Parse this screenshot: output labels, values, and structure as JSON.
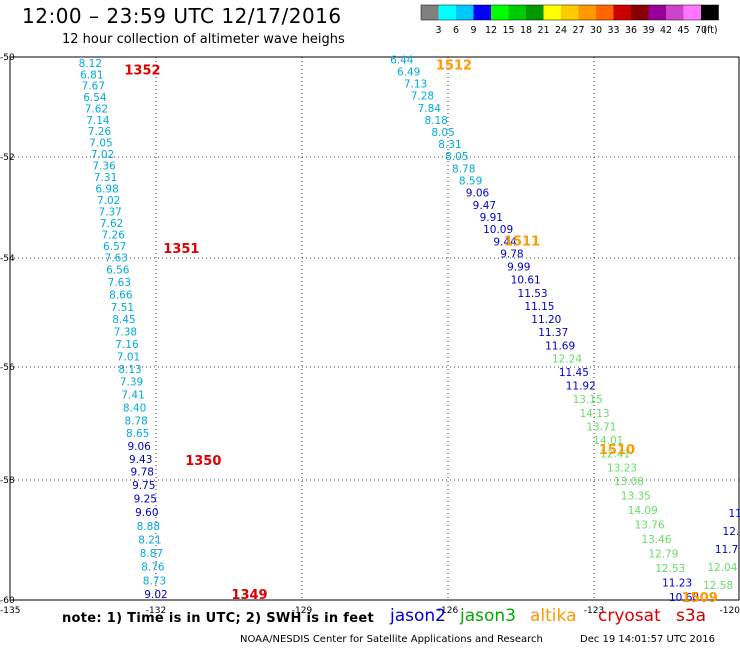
{
  "header": {
    "title": "12:00 – 23:59 UTC 12/17/2016",
    "subtitle": "12 hour collection of altimeter wave heighs"
  },
  "color_scale": {
    "unit": "(ft)",
    "colors": [
      "#808080",
      "#00ffff",
      "#00c8ff",
      "#0000ff",
      "#00ff00",
      "#00cc00",
      "#009900",
      "#ffff00",
      "#ffcc00",
      "#ff9900",
      "#ff6600",
      "#cc0000",
      "#880000",
      "#990099",
      "#cc44cc",
      "#ff77ff",
      "#000000"
    ],
    "labels": [
      "3",
      "6",
      "9",
      "12",
      "15",
      "18",
      "21",
      "24",
      "27",
      "30",
      "33",
      "36",
      "39",
      "42",
      "45",
      "70"
    ]
  },
  "footer": {
    "note": "note: 1) Time is in UTC; 2) SWH is in feet",
    "credit": "NOAA/NESDIS Center for Satellite Applications and Research",
    "timestamp": "Dec 19 14:01:57 UTC 2016"
  },
  "legend": [
    {
      "name": "jason2",
      "color": "#0000cc"
    },
    {
      "name": "jason3",
      "color": "#00aa00"
    },
    {
      "name": "altika",
      "color": "#ff9900"
    },
    {
      "name": "cryosat",
      "color": "#dd0000"
    },
    {
      "name": "s3a",
      "color": "#cc0000"
    }
  ],
  "map": {
    "lon_range": [
      -135,
      -120
    ],
    "lat_range": [
      -60,
      -50
    ],
    "lon_ticks": [
      "-135",
      "-132",
      "-129",
      "-126",
      "-123",
      "-120"
    ],
    "lat_ticks": [
      "-50",
      "-52",
      "-54",
      "-56",
      "-58",
      "-60"
    ],
    "lat_tick_values": [
      -50,
      -52,
      -54,
      -56,
      -58,
      -60
    ],
    "grid": true
  },
  "passes": [
    {
      "label": "1352",
      "color": "#dd0000",
      "lon": -132.65,
      "lat": -50.25
    },
    {
      "label": "1351",
      "color": "#dd0000",
      "lon": -131.85,
      "lat": -53.8
    },
    {
      "label": "1350",
      "color": "#dd0000",
      "lon": -131.4,
      "lat": -57.65
    },
    {
      "label": "1349",
      "color": "#dd0000",
      "lon": -130.45,
      "lat": -59.9
    },
    {
      "label": "1512",
      "color": "#ff9900",
      "lon": -126.25,
      "lat": -50.15
    },
    {
      "label": "1511",
      "color": "#ff9900",
      "lon": -124.85,
      "lat": -53.65
    },
    {
      "label": "1510",
      "color": "#ff9900",
      "lon": -122.9,
      "lat": -57.45
    },
    {
      "label": "1509",
      "color": "#ff9900",
      "lon": -121.2,
      "lat": -59.95
    }
  ],
  "tracks": [
    {
      "name": "track-1352-1349",
      "lon_start": -133.35,
      "lat_start": -50.12,
      "lon_end": -132.0,
      "lat_end": -59.9,
      "values": [
        "8.12",
        "6.81",
        "7.67",
        "6.54",
        "7.62",
        "7.14",
        "7.26",
        "7.05",
        "7.02",
        "7.36",
        "7.31",
        "6.98",
        "7.02",
        "7.37",
        "7.62",
        "7.26",
        "6.57",
        "7.63",
        "6.56",
        "7.63",
        "8.66",
        "7.51",
        "8.45",
        "7.38",
        "7.16",
        "7.01",
        "8.13",
        "7.39",
        "7.41",
        "8.40",
        "8.78",
        "8.65",
        "9.06",
        "9.43",
        "9.78",
        "9.75",
        "9.25",
        "9.60",
        "8.88",
        "8.21",
        "8.87",
        "8.76",
        "8.73",
        "9.02"
      ],
      "colors": [
        "#00aadd",
        "#00aadd",
        "#00aadd",
        "#00aadd",
        "#00aadd",
        "#00aadd",
        "#00aadd",
        "#00aadd",
        "#00aadd",
        "#00aadd",
        "#00aadd",
        "#00aadd",
        "#00aadd",
        "#00aadd",
        "#00aadd",
        "#00aadd",
        "#00aadd",
        "#00aadd",
        "#00aadd",
        "#00aadd",
        "#00aadd",
        "#00aadd",
        "#00aadd",
        "#00aadd",
        "#00aadd",
        "#00aadd",
        "#00aadd",
        "#00aadd",
        "#00aadd",
        "#00aadd",
        "#00aadd",
        "#00aadd",
        "#0000cc",
        "#0000cc",
        "#0000cc",
        "#0000cc",
        "#0000cc",
        "#0000cc",
        "#00aadd",
        "#00aadd",
        "#00aadd",
        "#00aadd",
        "#00aadd",
        "#0000cc"
      ]
    },
    {
      "name": "track-1512-1509",
      "lon_start": -126.95,
      "lat_start": -50.05,
      "lon_end": -121.15,
      "lat_end": -59.95,
      "values": [
        "6.44",
        "6.49",
        "7.13",
        "7.28",
        "7.84",
        "8.18",
        "8.05",
        "8.31",
        "8.05",
        "8.78",
        "8.59",
        "9.06",
        "9.47",
        "9.91",
        "10.09",
        "9.44",
        "9.78",
        "9.99",
        "10.61",
        "11.53",
        "11.15",
        "11.20",
        "11.37",
        "11.69",
        "12.24",
        "11.45",
        "11.92",
        "13.15",
        "14.13",
        "13.71",
        "14.01",
        "12.41",
        "13.23",
        "13.08",
        "13.35",
        "14.09",
        "13.76",
        "13.46",
        "12.79",
        "12.53",
        "11.23",
        "10.60"
      ],
      "colors": [
        "#00aadd",
        "#00aadd",
        "#00aadd",
        "#00aadd",
        "#00aadd",
        "#00aadd",
        "#00aadd",
        "#00aadd",
        "#00aadd",
        "#00aadd",
        "#00aadd",
        "#0000cc",
        "#0000cc",
        "#0000cc",
        "#0000cc",
        "#0000cc",
        "#0000cc",
        "#0000cc",
        "#0000cc",
        "#0000cc",
        "#0000cc",
        "#0000cc",
        "#0000cc",
        "#0000cc",
        "#66dd66",
        "#0000cc",
        "#0000cc",
        "#66dd66",
        "#66dd66",
        "#66dd66",
        "#66dd66",
        "#66dd66",
        "#66dd66",
        "#66dd66",
        "#66dd66",
        "#66dd66",
        "#66dd66",
        "#66dd66",
        "#66dd66",
        "#66dd66",
        "#0000cc",
        "#0000cc"
      ]
    },
    {
      "name": "track-edge",
      "lon_start": -120.1,
      "lat_start": -58.55,
      "lon_end": -120.45,
      "lat_end": -59.75,
      "values": [
        "11",
        "12.",
        "11.7",
        "12.04",
        "12.58"
      ],
      "colors": [
        "#0000cc",
        "#0000cc",
        "#0000cc",
        "#66dd66",
        "#66dd66"
      ]
    }
  ]
}
